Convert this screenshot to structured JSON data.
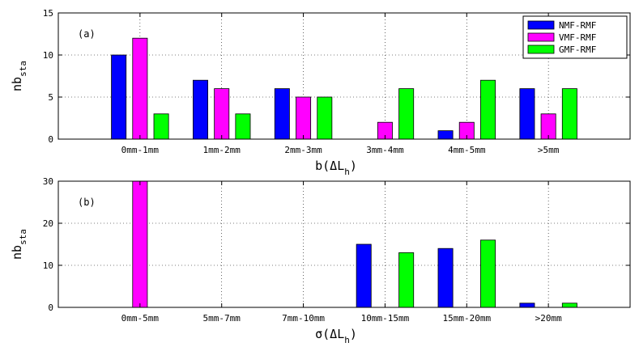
{
  "chart_data": [
    {
      "type": "bar",
      "panel_label": "(a)",
      "categories": [
        "0mm-1mm",
        "1mm-2mm",
        "2mm-3mm",
        "3mm-4mm",
        "4mm-5mm",
        ">5mm"
      ],
      "series": [
        {
          "name": "NMF-RMF",
          "color": "#0000ff",
          "values": [
            10,
            7,
            6,
            0,
            1,
            6
          ]
        },
        {
          "name": "VMF-RMF",
          "color": "#ff00ff",
          "values": [
            12,
            6,
            5,
            2,
            2,
            3
          ]
        },
        {
          "name": "GMF-RMF",
          "color": "#00ff00",
          "values": [
            3,
            3,
            5,
            6,
            7,
            6
          ]
        }
      ],
      "xlabel_main": "b(ΔL",
      "xlabel_sub": "h",
      "xlabel_end": ")",
      "ylabel_main": "nb",
      "ylabel_sub": "sta",
      "ylim": [
        0,
        15
      ],
      "yticks": [
        0,
        5,
        10,
        15
      ],
      "grid": "dotted",
      "legend": "top-right"
    },
    {
      "type": "bar",
      "panel_label": "(b)",
      "categories": [
        "0mm-5mm",
        "5mm-7mm",
        "7mm-10mm",
        "10mm-15mm",
        "15mm-20mm",
        ">20mm"
      ],
      "series": [
        {
          "name": "NMF-RMF",
          "color": "#0000ff",
          "values": [
            0,
            0,
            0,
            15,
            14,
            1
          ]
        },
        {
          "name": "VMF-RMF",
          "color": "#ff00ff",
          "values": [
            30,
            0,
            0,
            0,
            0,
            0
          ]
        },
        {
          "name": "GMF-RMF",
          "color": "#00ff00",
          "values": [
            0,
            0,
            0,
            13,
            16,
            1
          ]
        }
      ],
      "xlabel_main": "σ(ΔL",
      "xlabel_sub": "h",
      "xlabel_end": ")",
      "ylabel_main": "nb",
      "ylabel_sub": "sta",
      "ylim": [
        0,
        30
      ],
      "yticks": [
        0,
        10,
        20,
        30
      ],
      "grid": "dotted",
      "legend": "none"
    }
  ]
}
